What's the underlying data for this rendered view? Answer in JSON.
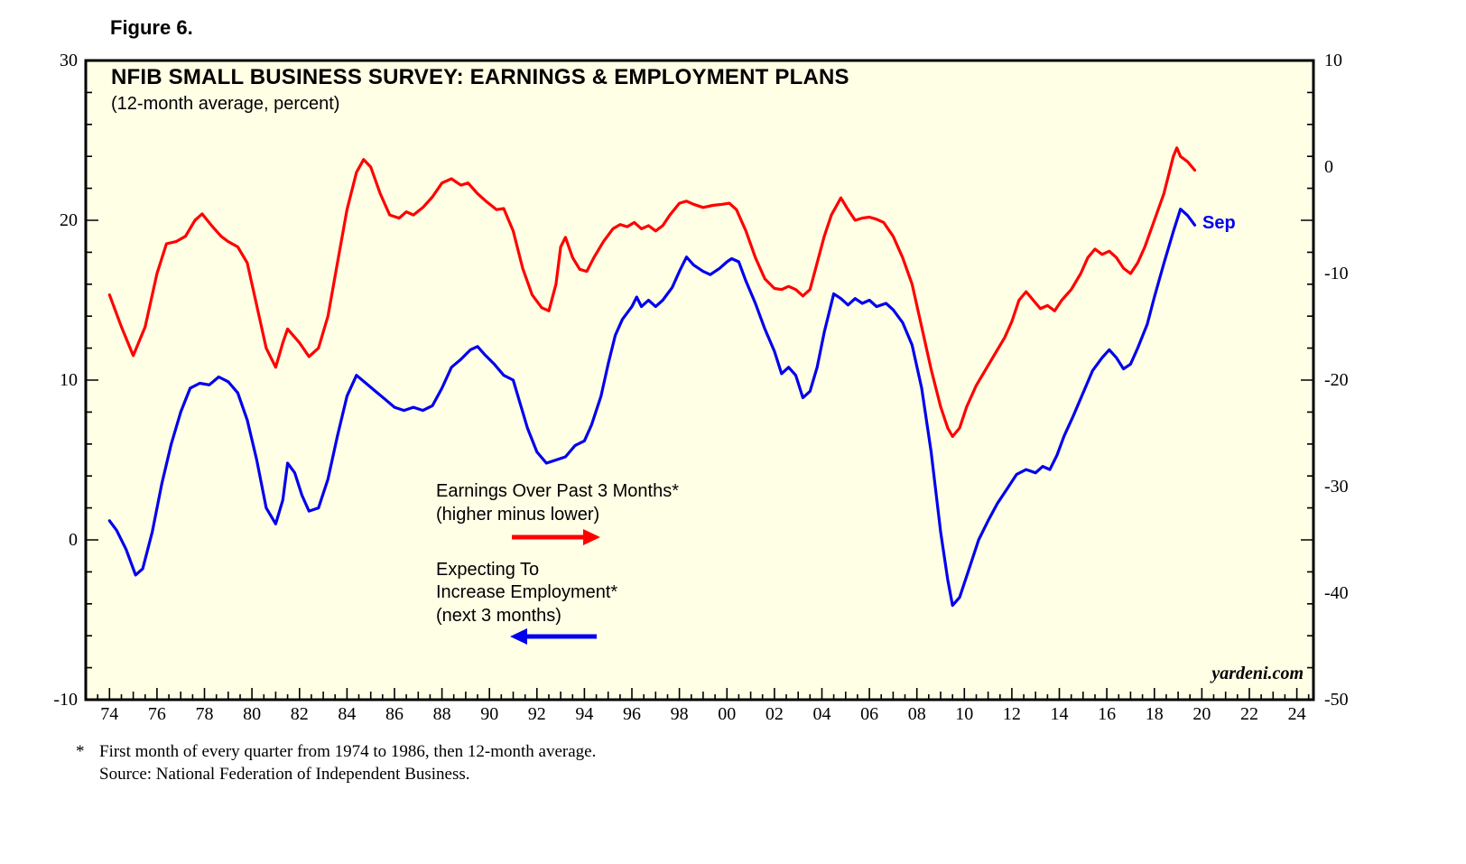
{
  "figure_label": "Figure 6.",
  "chart": {
    "title": "NFIB SMALL BUSINESS SURVEY: EARNINGS & EMPLOYMENT PLANS",
    "subtitle": "(12-month average, percent)",
    "watermark": "yardeni.com",
    "end_label": "Sep",
    "legend": {
      "earnings": {
        "line1": "Earnings Over Past 3 Months*",
        "line2": "(higher minus lower)",
        "arrow_direction": "right"
      },
      "employment": {
        "line1": "Expecting To",
        "line2": "Increase Employment*",
        "line3": "(next 3 months)",
        "arrow_direction": "left"
      }
    }
  },
  "footnote": {
    "asterisk": "*",
    "line1": "First month of every quarter from 1974 to 1986, then 12-month average.",
    "line2": "Source: National Federation of Independent Business."
  },
  "chart_data": {
    "type": "line",
    "title": "NFIB SMALL BUSINESS SURVEY: EARNINGS & EMPLOYMENT PLANS",
    "subtitle": "(12-month average, percent)",
    "plot_background": "#FFFFE6",
    "grid": false,
    "x_axis": {
      "range": [
        1973.0,
        2024.7
      ],
      "tick_step_years": 2
    },
    "x_ticks": [
      {
        "year": 1974,
        "label": "74"
      },
      {
        "year": 1976,
        "label": "76"
      },
      {
        "year": 1978,
        "label": "78"
      },
      {
        "year": 1980,
        "label": "80"
      },
      {
        "year": 1982,
        "label": "82"
      },
      {
        "year": 1984,
        "label": "84"
      },
      {
        "year": 1986,
        "label": "86"
      },
      {
        "year": 1988,
        "label": "88"
      },
      {
        "year": 1990,
        "label": "90"
      },
      {
        "year": 1992,
        "label": "92"
      },
      {
        "year": 1994,
        "label": "94"
      },
      {
        "year": 1996,
        "label": "96"
      },
      {
        "year": 1998,
        "label": "98"
      },
      {
        "year": 2000,
        "label": "00"
      },
      {
        "year": 2002,
        "label": "02"
      },
      {
        "year": 2004,
        "label": "04"
      },
      {
        "year": 2006,
        "label": "06"
      },
      {
        "year": 2008,
        "label": "08"
      },
      {
        "year": 2010,
        "label": "10"
      },
      {
        "year": 2012,
        "label": "12"
      },
      {
        "year": 2014,
        "label": "14"
      },
      {
        "year": 2016,
        "label": "16"
      },
      {
        "year": 2018,
        "label": "18"
      },
      {
        "year": 2020,
        "label": "20"
      },
      {
        "year": 2022,
        "label": "22"
      },
      {
        "year": 2024,
        "label": "24"
      }
    ],
    "y_axis_left": {
      "range": [
        -10,
        30
      ],
      "ticks": [
        30,
        20,
        10,
        0,
        -10
      ],
      "series": "employment"
    },
    "y_axis_right": {
      "range": [
        -50,
        10
      ],
      "ticks": [
        10,
        0,
        -10,
        -20,
        -30,
        -40,
        -50
      ],
      "series": "earnings"
    },
    "series": [
      {
        "name": "Earnings Over Past 3 Months (higher minus lower)",
        "axis": "right",
        "color": "#FF0000",
        "end_month": "Sep",
        "points": [
          [
            1974.0,
            -12
          ],
          [
            1974.5,
            -15
          ],
          [
            1975.0,
            -17.7
          ],
          [
            1975.5,
            -15
          ],
          [
            1976.0,
            -10
          ],
          [
            1976.4,
            -7.2
          ],
          [
            1976.8,
            -7
          ],
          [
            1977.2,
            -6.5
          ],
          [
            1977.6,
            -5
          ],
          [
            1977.9,
            -4.4
          ],
          [
            1978.3,
            -5.5
          ],
          [
            1978.7,
            -6.5
          ],
          [
            1979.0,
            -7
          ],
          [
            1979.4,
            -7.5
          ],
          [
            1979.8,
            -9
          ],
          [
            1980.2,
            -13
          ],
          [
            1980.6,
            -17
          ],
          [
            1981.0,
            -18.8
          ],
          [
            1981.3,
            -16.5
          ],
          [
            1981.5,
            -15.2
          ],
          [
            1982.0,
            -16.5
          ],
          [
            1982.4,
            -17.8
          ],
          [
            1982.8,
            -17
          ],
          [
            1983.2,
            -14
          ],
          [
            1983.6,
            -9
          ],
          [
            1984.0,
            -4
          ],
          [
            1984.4,
            -0.5
          ],
          [
            1984.7,
            0.7
          ],
          [
            1985.0,
            0
          ],
          [
            1985.4,
            -2.5
          ],
          [
            1985.8,
            -4.5
          ],
          [
            1986.2,
            -4.8
          ],
          [
            1986.5,
            -4.2
          ],
          [
            1986.8,
            -4.5
          ],
          [
            1987.2,
            -3.8
          ],
          [
            1987.6,
            -2.8
          ],
          [
            1988.0,
            -1.5
          ],
          [
            1988.4,
            -1.1
          ],
          [
            1988.8,
            -1.7
          ],
          [
            1989.1,
            -1.5
          ],
          [
            1989.5,
            -2.5
          ],
          [
            1989.9,
            -3.3
          ],
          [
            1990.3,
            -4
          ],
          [
            1990.6,
            -3.9
          ],
          [
            1991.0,
            -6
          ],
          [
            1991.4,
            -9.5
          ],
          [
            1991.8,
            -12
          ],
          [
            1992.2,
            -13.2
          ],
          [
            1992.5,
            -13.5
          ],
          [
            1992.8,
            -11
          ],
          [
            1993.0,
            -7.5
          ],
          [
            1993.2,
            -6.6
          ],
          [
            1993.5,
            -8.5
          ],
          [
            1993.8,
            -9.6
          ],
          [
            1994.1,
            -9.8
          ],
          [
            1994.4,
            -8.5
          ],
          [
            1994.8,
            -7
          ],
          [
            1995.2,
            -5.8
          ],
          [
            1995.5,
            -5.4
          ],
          [
            1995.8,
            -5.6
          ],
          [
            1996.1,
            -5.2
          ],
          [
            1996.4,
            -5.8
          ],
          [
            1996.7,
            -5.5
          ],
          [
            1997.0,
            -6
          ],
          [
            1997.3,
            -5.5
          ],
          [
            1997.6,
            -4.5
          ],
          [
            1998.0,
            -3.4
          ],
          [
            1998.3,
            -3.2
          ],
          [
            1998.6,
            -3.5
          ],
          [
            1999.0,
            -3.8
          ],
          [
            1999.4,
            -3.6
          ],
          [
            1999.8,
            -3.5
          ],
          [
            2000.1,
            -3.4
          ],
          [
            2000.4,
            -4
          ],
          [
            2000.8,
            -6
          ],
          [
            2001.2,
            -8.5
          ],
          [
            2001.6,
            -10.5
          ],
          [
            2002.0,
            -11.4
          ],
          [
            2002.3,
            -11.5
          ],
          [
            2002.6,
            -11.2
          ],
          [
            2002.9,
            -11.5
          ],
          [
            2003.2,
            -12.1
          ],
          [
            2003.5,
            -11.5
          ],
          [
            2003.8,
            -9
          ],
          [
            2004.1,
            -6.5
          ],
          [
            2004.4,
            -4.5
          ],
          [
            2004.8,
            -2.9
          ],
          [
            2005.1,
            -4
          ],
          [
            2005.4,
            -5
          ],
          [
            2005.7,
            -4.8
          ],
          [
            2006.0,
            -4.7
          ],
          [
            2006.3,
            -4.9
          ],
          [
            2006.6,
            -5.2
          ],
          [
            2007.0,
            -6.5
          ],
          [
            2007.4,
            -8.5
          ],
          [
            2007.8,
            -11
          ],
          [
            2008.2,
            -15
          ],
          [
            2008.6,
            -19
          ],
          [
            2009.0,
            -22.5
          ],
          [
            2009.3,
            -24.5
          ],
          [
            2009.5,
            -25.3
          ],
          [
            2009.8,
            -24.5
          ],
          [
            2010.1,
            -22.5
          ],
          [
            2010.5,
            -20.5
          ],
          [
            2010.9,
            -19
          ],
          [
            2011.3,
            -17.5
          ],
          [
            2011.7,
            -16
          ],
          [
            2012.0,
            -14.5
          ],
          [
            2012.3,
            -12.5
          ],
          [
            2012.6,
            -11.7
          ],
          [
            2012.9,
            -12.5
          ],
          [
            2013.2,
            -13.3
          ],
          [
            2013.5,
            -13
          ],
          [
            2013.8,
            -13.5
          ],
          [
            2014.1,
            -12.5
          ],
          [
            2014.5,
            -11.5
          ],
          [
            2014.9,
            -10
          ],
          [
            2015.2,
            -8.5
          ],
          [
            2015.5,
            -7.7
          ],
          [
            2015.8,
            -8.2
          ],
          [
            2016.1,
            -7.9
          ],
          [
            2016.4,
            -8.5
          ],
          [
            2016.7,
            -9.5
          ],
          [
            2017.0,
            -10
          ],
          [
            2017.3,
            -9
          ],
          [
            2017.6,
            -7.5
          ],
          [
            2018.0,
            -5
          ],
          [
            2018.4,
            -2.5
          ],
          [
            2018.8,
            1
          ],
          [
            2018.95,
            1.8
          ],
          [
            2019.1,
            1
          ],
          [
            2019.4,
            0.5
          ],
          [
            2019.7,
            -0.3
          ]
        ]
      },
      {
        "name": "Expecting To Increase Employment (next 3 months)",
        "axis": "left",
        "color": "#0000EE",
        "end_month": "Sep",
        "points": [
          [
            1974.0,
            1.2
          ],
          [
            1974.3,
            0.6
          ],
          [
            1974.7,
            -0.6
          ],
          [
            1975.1,
            -2.2
          ],
          [
            1975.4,
            -1.8
          ],
          [
            1975.8,
            0.5
          ],
          [
            1976.2,
            3.5
          ],
          [
            1976.6,
            6
          ],
          [
            1977.0,
            8
          ],
          [
            1977.4,
            9.5
          ],
          [
            1977.8,
            9.8
          ],
          [
            1978.2,
            9.7
          ],
          [
            1978.6,
            10.2
          ],
          [
            1979.0,
            9.9
          ],
          [
            1979.4,
            9.2
          ],
          [
            1979.8,
            7.5
          ],
          [
            1980.2,
            5
          ],
          [
            1980.6,
            2
          ],
          [
            1981.0,
            1
          ],
          [
            1981.3,
            2.5
          ],
          [
            1981.5,
            4.8
          ],
          [
            1981.8,
            4.2
          ],
          [
            1982.1,
            2.8
          ],
          [
            1982.4,
            1.8
          ],
          [
            1982.8,
            2
          ],
          [
            1983.2,
            3.8
          ],
          [
            1983.6,
            6.5
          ],
          [
            1984.0,
            9
          ],
          [
            1984.4,
            10.3
          ],
          [
            1984.8,
            9.8
          ],
          [
            1985.2,
            9.3
          ],
          [
            1985.6,
            8.8
          ],
          [
            1986.0,
            8.3
          ],
          [
            1986.4,
            8.1
          ],
          [
            1986.8,
            8.3
          ],
          [
            1987.2,
            8.1
          ],
          [
            1987.6,
            8.4
          ],
          [
            1988.0,
            9.5
          ],
          [
            1988.4,
            10.8
          ],
          [
            1988.8,
            11.3
          ],
          [
            1989.2,
            11.9
          ],
          [
            1989.5,
            12.1
          ],
          [
            1989.8,
            11.6
          ],
          [
            1990.2,
            11
          ],
          [
            1990.6,
            10.3
          ],
          [
            1991.0,
            10
          ],
          [
            1991.3,
            8.5
          ],
          [
            1991.6,
            7
          ],
          [
            1992.0,
            5.5
          ],
          [
            1992.4,
            4.8
          ],
          [
            1992.8,
            5
          ],
          [
            1993.2,
            5.2
          ],
          [
            1993.6,
            5.9
          ],
          [
            1994.0,
            6.2
          ],
          [
            1994.3,
            7.2
          ],
          [
            1994.7,
            9
          ],
          [
            1995.0,
            11
          ],
          [
            1995.3,
            12.8
          ],
          [
            1995.6,
            13.8
          ],
          [
            1996.0,
            14.6
          ],
          [
            1996.2,
            15.2
          ],
          [
            1996.4,
            14.6
          ],
          [
            1996.7,
            15
          ],
          [
            1997.0,
            14.6
          ],
          [
            1997.3,
            15
          ],
          [
            1997.7,
            15.8
          ],
          [
            1998.0,
            16.8
          ],
          [
            1998.3,
            17.7
          ],
          [
            1998.6,
            17.2
          ],
          [
            1999.0,
            16.8
          ],
          [
            1999.3,
            16.6
          ],
          [
            1999.7,
            17
          ],
          [
            2000.0,
            17.4
          ],
          [
            2000.2,
            17.6
          ],
          [
            2000.5,
            17.4
          ],
          [
            2000.8,
            16.2
          ],
          [
            2001.2,
            14.8
          ],
          [
            2001.6,
            13.2
          ],
          [
            2002.0,
            11.8
          ],
          [
            2002.3,
            10.4
          ],
          [
            2002.6,
            10.8
          ],
          [
            2002.9,
            10.3
          ],
          [
            2003.2,
            8.9
          ],
          [
            2003.5,
            9.3
          ],
          [
            2003.8,
            10.8
          ],
          [
            2004.1,
            13
          ],
          [
            2004.5,
            15.4
          ],
          [
            2004.8,
            15.1
          ],
          [
            2005.1,
            14.7
          ],
          [
            2005.4,
            15.1
          ],
          [
            2005.7,
            14.8
          ],
          [
            2006.0,
            15
          ],
          [
            2006.3,
            14.6
          ],
          [
            2006.7,
            14.8
          ],
          [
            2007.0,
            14.4
          ],
          [
            2007.4,
            13.6
          ],
          [
            2007.8,
            12.2
          ],
          [
            2008.2,
            9.5
          ],
          [
            2008.6,
            5.5
          ],
          [
            2009.0,
            0.5
          ],
          [
            2009.3,
            -2.5
          ],
          [
            2009.5,
            -4.1
          ],
          [
            2009.8,
            -3.6
          ],
          [
            2010.2,
            -1.8
          ],
          [
            2010.6,
            0
          ],
          [
            2011.0,
            1.2
          ],
          [
            2011.4,
            2.3
          ],
          [
            2011.8,
            3.2
          ],
          [
            2012.2,
            4.1
          ],
          [
            2012.6,
            4.4
          ],
          [
            2013.0,
            4.2
          ],
          [
            2013.3,
            4.6
          ],
          [
            2013.6,
            4.4
          ],
          [
            2013.9,
            5.3
          ],
          [
            2014.2,
            6.5
          ],
          [
            2014.6,
            7.8
          ],
          [
            2015.0,
            9.2
          ],
          [
            2015.4,
            10.6
          ],
          [
            2015.8,
            11.4
          ],
          [
            2016.1,
            11.9
          ],
          [
            2016.4,
            11.4
          ],
          [
            2016.7,
            10.7
          ],
          [
            2017.0,
            11
          ],
          [
            2017.3,
            12
          ],
          [
            2017.7,
            13.5
          ],
          [
            2018.0,
            15.2
          ],
          [
            2018.4,
            17.3
          ],
          [
            2018.8,
            19.3
          ],
          [
            2019.1,
            20.7
          ],
          [
            2019.4,
            20.3
          ],
          [
            2019.7,
            19.7
          ]
        ]
      }
    ]
  }
}
